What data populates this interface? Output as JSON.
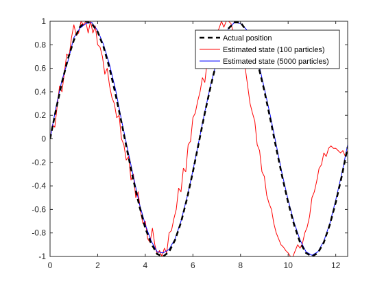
{
  "chart_data": {
    "type": "line",
    "title": "",
    "xlabel": "",
    "ylabel": "",
    "xlim": [
      0,
      12.5
    ],
    "ylim": [
      -1,
      1
    ],
    "xticks": [
      0,
      2,
      4,
      6,
      8,
      10,
      12
    ],
    "yticks": [
      -1,
      -0.8,
      -0.6,
      -0.4,
      -0.2,
      0,
      0.2,
      0.4,
      0.6,
      0.8,
      1
    ],
    "xtick_labels": [
      "0",
      "2",
      "4",
      "6",
      "8",
      "10",
      "12"
    ],
    "ytick_labels": [
      "-1",
      "-0.8",
      "-0.6",
      "-0.4",
      "-0.2",
      "0",
      "0.2",
      "0.4",
      "0.6",
      "0.8",
      "1"
    ],
    "grid": false,
    "legend_position": "top-right",
    "series": [
      {
        "name": "Actual position",
        "color": "#000000",
        "style": "dashed",
        "x": [
          0,
          0.25,
          0.5,
          0.75,
          1.0,
          1.25,
          1.5,
          1.75,
          2.0,
          2.25,
          2.5,
          2.75,
          3.0,
          3.25,
          3.5,
          3.75,
          4.0,
          4.25,
          4.5,
          4.75,
          5.0,
          5.25,
          5.5,
          5.75,
          6.0,
          6.25,
          6.5,
          6.75,
          7.0,
          7.25,
          7.5,
          7.75,
          8.0,
          8.25,
          8.5,
          8.75,
          9.0,
          9.25,
          9.5,
          9.75,
          10.0,
          10.25,
          10.5,
          10.75,
          11.0,
          11.25,
          11.5,
          11.75,
          12.0,
          12.25,
          12.5
        ],
        "y": [
          0,
          0.25,
          0.48,
          0.68,
          0.84,
          0.95,
          1.0,
          0.98,
          0.91,
          0.78,
          0.6,
          0.38,
          0.14,
          -0.11,
          -0.35,
          -0.57,
          -0.76,
          -0.89,
          -0.98,
          -1.0,
          -0.96,
          -0.86,
          -0.71,
          -0.51,
          -0.28,
          -0.03,
          0.22,
          0.45,
          0.66,
          0.82,
          0.94,
          0.99,
          0.99,
          0.92,
          0.8,
          0.62,
          0.41,
          0.17,
          -0.08,
          -0.32,
          -0.54,
          -0.73,
          -0.88,
          -0.97,
          -1.0,
          -0.97,
          -0.88,
          -0.73,
          -0.54,
          -0.32,
          -0.07
        ]
      },
      {
        "name": "Estimated state (100 particles)",
        "color": "#ff0000",
        "style": "solid",
        "x": [
          0,
          0.1,
          0.2,
          0.3,
          0.4,
          0.5,
          0.6,
          0.7,
          0.8,
          0.9,
          1.0,
          1.1,
          1.2,
          1.3,
          1.4,
          1.5,
          1.6,
          1.7,
          1.8,
          1.9,
          2.0,
          2.1,
          2.2,
          2.3,
          2.4,
          2.5,
          2.6,
          2.7,
          2.8,
          2.9,
          3.0,
          3.1,
          3.2,
          3.3,
          3.4,
          3.5,
          3.6,
          3.7,
          3.8,
          3.9,
          4.0,
          4.1,
          4.2,
          4.3,
          4.4,
          4.5,
          4.6,
          4.7,
          4.8,
          4.9,
          5.0,
          5.1,
          5.2,
          5.3,
          5.4,
          5.5,
          5.6,
          5.7,
          5.8,
          5.9,
          6.0,
          6.1,
          6.2,
          6.3,
          6.4,
          6.5,
          6.6,
          6.7,
          6.8,
          6.9,
          7.0,
          7.1,
          7.2,
          7.3,
          7.4,
          7.5,
          7.6,
          7.7,
          7.8,
          7.9,
          8.0,
          8.1,
          8.2,
          8.3,
          8.4,
          8.5,
          8.6,
          8.7,
          8.8,
          8.9,
          9.0,
          9.1,
          9.2,
          9.3,
          9.4,
          9.5,
          9.6,
          9.7,
          9.8,
          9.9,
          10.0,
          10.1,
          10.2,
          10.3,
          10.4,
          10.5,
          10.6,
          10.7,
          10.8,
          10.9,
          11.0,
          11.1,
          11.2,
          11.3,
          11.4,
          11.5,
          11.6,
          11.7,
          11.8,
          11.9,
          12.0,
          12.1,
          12.2,
          12.3,
          12.4,
          12.5
        ],
        "y": [
          0,
          0.12,
          0.1,
          0.28,
          0.45,
          0.4,
          0.56,
          0.72,
          0.7,
          0.86,
          0.97,
          0.88,
          0.9,
          1.0,
          0.97,
          1.0,
          0.9,
          1.0,
          0.9,
          0.96,
          0.8,
          0.78,
          0.7,
          0.55,
          0.6,
          0.45,
          0.35,
          0.3,
          0.18,
          0.2,
          0.0,
          -0.05,
          -0.18,
          -0.15,
          -0.35,
          -0.3,
          -0.5,
          -0.45,
          -0.62,
          -0.72,
          -0.7,
          -0.85,
          -0.88,
          -0.76,
          -0.9,
          -0.98,
          -0.95,
          -1.0,
          -0.93,
          -0.97,
          -0.8,
          -0.78,
          -0.68,
          -0.6,
          -0.42,
          -0.45,
          -0.25,
          -0.28,
          -0.05,
          -0.02,
          0.18,
          0.22,
          0.32,
          0.4,
          0.52,
          0.48,
          0.66,
          0.72,
          0.76,
          0.86,
          0.9,
          0.94,
          1.0,
          0.95,
          1.0,
          1.0,
          0.98,
          0.9,
          0.88,
          0.85,
          0.75,
          0.65,
          0.6,
          0.45,
          0.3,
          0.22,
          0.15,
          -0.05,
          -0.1,
          -0.28,
          -0.32,
          -0.48,
          -0.55,
          -0.6,
          -0.72,
          -0.8,
          -0.85,
          -0.9,
          -0.92,
          -0.95,
          -0.97,
          -1.0,
          -1.0,
          -0.95,
          -0.9,
          -0.93,
          -0.89,
          -0.8,
          -0.75,
          -0.66,
          -0.5,
          -0.45,
          -0.36,
          -0.25,
          -0.22,
          -0.12,
          -0.15,
          -0.08,
          -0.06,
          -0.08,
          -0.08,
          -0.1,
          -0.12,
          -0.1,
          -0.15,
          -0.1
        ]
      },
      {
        "name": "Estimated state (5000 particles)",
        "color": "#0000ff",
        "style": "solid",
        "x": [
          0,
          0.25,
          0.5,
          0.75,
          1.0,
          1.25,
          1.5,
          1.75,
          2.0,
          2.25,
          2.5,
          2.75,
          3.0,
          3.25,
          3.5,
          3.75,
          4.0,
          4.25,
          4.5,
          4.75,
          5.0,
          5.25,
          5.5,
          5.75,
          6.0,
          6.25,
          6.5,
          6.75,
          7.0,
          7.25,
          7.5,
          7.75,
          8.0,
          8.25,
          8.5,
          8.75,
          9.0,
          9.25,
          9.5,
          9.75,
          10.0,
          10.25,
          10.5,
          10.75,
          11.0,
          11.25,
          11.5,
          11.75,
          12.0,
          12.25,
          12.5
        ],
        "y": [
          0,
          0.27,
          0.5,
          0.66,
          0.86,
          0.94,
          0.98,
          0.99,
          0.92,
          0.8,
          0.63,
          0.42,
          0.16,
          -0.08,
          -0.32,
          -0.55,
          -0.73,
          -0.87,
          -0.96,
          -0.97,
          -0.94,
          -0.85,
          -0.7,
          -0.5,
          -0.27,
          -0.02,
          0.23,
          0.46,
          0.66,
          0.84,
          0.94,
          0.99,
          0.98,
          0.93,
          0.82,
          0.65,
          0.43,
          0.2,
          -0.05,
          -0.3,
          -0.52,
          -0.71,
          -0.86,
          -0.96,
          -0.99,
          -0.96,
          -0.87,
          -0.72,
          -0.52,
          -0.3,
          -0.05
        ]
      }
    ]
  }
}
